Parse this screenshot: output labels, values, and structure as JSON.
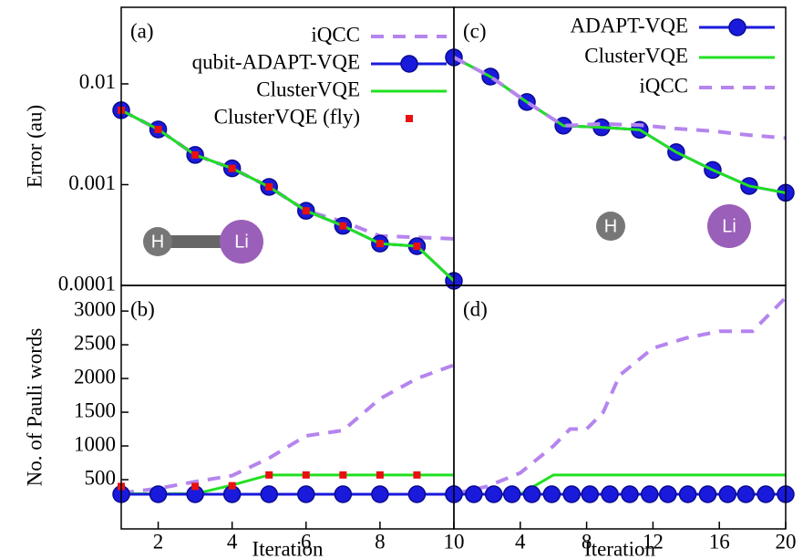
{
  "chart_data": [
    {
      "type": "line",
      "panel_label": "(a)",
      "y_label": "Error (au)",
      "log_y": true,
      "xlim": [
        1,
        10
      ],
      "ylim": [
        0.0001,
        0.0575
      ],
      "yticks": [
        0.0001,
        0.001,
        0.01
      ],
      "legend": true,
      "molecule": {
        "bonded": true,
        "atoms": [
          "H",
          "Li"
        ]
      },
      "series": [
        {
          "name": "iQCC",
          "color": "#b585ee",
          "style": "dashed",
          "marker": "none",
          "x": [
            1,
            2,
            3,
            4,
            5,
            6,
            7,
            8,
            9,
            10
          ],
          "values": [
            0.00547,
            0.00353,
            0.00197,
            0.00145,
            0.00095,
            0.00055,
            0.00043,
            0.00031,
            0.0003,
            0.00029
          ]
        },
        {
          "name": "qubit-ADAPT-VQE",
          "color": "#1a1adc",
          "style": "solid",
          "marker": "circle",
          "x": [
            1,
            2,
            3,
            4,
            5,
            6,
            7,
            8,
            9,
            10
          ],
          "values": [
            0.00547,
            0.00353,
            0.00197,
            0.00145,
            0.00095,
            0.00055,
            0.00039,
            0.00026,
            0.000245,
            0.000111
          ]
        },
        {
          "name": "ClusterVQE",
          "color": "#22e022",
          "style": "solid",
          "marker": "none",
          "x": [
            1,
            2,
            3,
            4,
            5,
            6,
            7,
            8,
            9,
            10
          ],
          "values": [
            0.00547,
            0.00353,
            0.00197,
            0.00145,
            0.00095,
            0.00055,
            0.00039,
            0.00026,
            0.000245,
            0.000111
          ]
        },
        {
          "name": "ClusterVQE (fly)",
          "color": "#e81010",
          "style": "none",
          "marker": "square",
          "x": [
            1,
            2,
            3,
            4,
            5,
            6,
            7,
            8,
            9
          ],
          "values": [
            0.00547,
            0.00353,
            0.00197,
            0.00145,
            0.00095,
            0.00055,
            0.00039,
            0.00026,
            0.000245
          ]
        }
      ]
    },
    {
      "type": "line",
      "panel_label": "(c)",
      "log_y": true,
      "xlim": [
        0,
        20
      ],
      "ylim": [
        0.0001,
        0.0575
      ],
      "legend": true,
      "molecule": {
        "bonded": false,
        "atoms": [
          "H",
          "Li"
        ]
      },
      "series": [
        {
          "name": "ADAPT-VQE",
          "color": "#1a1adc",
          "style": "solid",
          "marker": "circle",
          "x": [
            0,
            2.2,
            4.4,
            6.6,
            8.9,
            11.2,
            13.4,
            15.6,
            17.8,
            20
          ],
          "values": [
            0.0183,
            0.0118,
            0.0066,
            0.00384,
            0.0037,
            0.0035,
            0.0021,
            0.0014,
            0.00097,
            0.00083
          ]
        },
        {
          "name": "ClusterVQE",
          "color": "#22e022",
          "style": "solid",
          "marker": "none",
          "x": [
            0,
            2.2,
            4.4,
            6.6,
            8.9,
            11.2,
            13.4,
            15.6,
            17.8,
            20
          ],
          "values": [
            0.0183,
            0.0118,
            0.0066,
            0.00384,
            0.0037,
            0.0035,
            0.0021,
            0.0014,
            0.00097,
            0.00083
          ]
        },
        {
          "name": "iQCC",
          "color": "#b585ee",
          "style": "dashed",
          "marker": "none",
          "x": [
            0,
            2.2,
            4.4,
            6.6,
            8.9,
            11.2,
            13.4,
            15.6,
            17.8,
            20
          ],
          "values": [
            0.0183,
            0.0118,
            0.0066,
            0.00384,
            0.004,
            0.0039,
            0.0036,
            0.0034,
            0.0031,
            0.0029
          ]
        }
      ]
    },
    {
      "type": "line",
      "panel_label": "(b)",
      "y_label": "No. of Pauli words",
      "x_label": "Iteration",
      "xlim": [
        1,
        10
      ],
      "xticks": [
        2,
        4,
        6,
        8,
        10
      ],
      "ylim": [
        -230,
        3380
      ],
      "yticks": [
        500,
        1000,
        1500,
        2000,
        2500,
        3000
      ],
      "legend": false,
      "series": [
        {
          "name": "iQCC",
          "color": "#b585ee",
          "style": "dashed",
          "marker": "none",
          "x": [
            1,
            2,
            3,
            4,
            5,
            6,
            7,
            8,
            9,
            10
          ],
          "values": [
            300,
            370,
            470,
            560,
            820,
            1150,
            1230,
            1700,
            2000,
            2200
          ]
        },
        {
          "name": "ClusterVQE",
          "color": "#22e022",
          "style": "solid",
          "marker": "none",
          "x": [
            1,
            2,
            3,
            4,
            5,
            6,
            7,
            8,
            9,
            10
          ],
          "values": [
            290,
            290,
            290,
            420,
            570,
            570,
            570,
            570,
            570,
            570
          ]
        },
        {
          "name": "qubit-ADAPT-VQE",
          "color": "#1a1adc",
          "style": "solid",
          "marker": "circle",
          "x": [
            1,
            2,
            3,
            4,
            5,
            6,
            7,
            8,
            9,
            10
          ],
          "values": [
            284,
            284,
            284,
            284,
            284,
            284,
            284,
            284,
            284,
            284
          ]
        },
        {
          "name": "ClusterVQE (fly)",
          "color": "#e81010",
          "style": "none",
          "marker": "square",
          "x": [
            1,
            3,
            4,
            5,
            6,
            7,
            8,
            9
          ],
          "values": [
            400,
            400,
            410,
            570,
            570,
            570,
            570,
            570
          ]
        }
      ]
    },
    {
      "type": "line",
      "panel_label": "(d)",
      "x_label": "Iteration",
      "xlim": [
        0,
        20
      ],
      "xticks": [
        4,
        8,
        12,
        16,
        20
      ],
      "ylim": [
        -230,
        3380
      ],
      "legend": false,
      "series": [
        {
          "name": "iQCC",
          "color": "#b585ee",
          "style": "dashed",
          "marker": "none",
          "x": [
            0,
            2,
            4,
            6,
            7,
            8,
            9,
            10,
            12,
            14,
            16,
            18,
            20
          ],
          "values": [
            290,
            400,
            600,
            1000,
            1250,
            1250,
            1500,
            2050,
            2450,
            2600,
            2700,
            2700,
            3200
          ]
        },
        {
          "name": "ClusterVQE",
          "color": "#22e022",
          "style": "solid",
          "marker": "none",
          "x": [
            0,
            4,
            6,
            20
          ],
          "values": [
            284,
            284,
            570,
            570
          ]
        },
        {
          "name": "ADAPT-VQE",
          "color": "#1a1adc",
          "style": "solid",
          "marker": "circle",
          "x": [
            0,
            1.2,
            2.4,
            3.5,
            4.7,
            5.9,
            7.1,
            8.2,
            9.4,
            10.6,
            11.8,
            12.9,
            14.1,
            15.3,
            16.5,
            17.6,
            18.8,
            20
          ],
          "values": [
            284,
            284,
            284,
            284,
            284,
            284,
            284,
            284,
            284,
            284,
            284,
            284,
            284,
            284,
            284,
            284,
            284,
            284
          ]
        }
      ]
    }
  ]
}
